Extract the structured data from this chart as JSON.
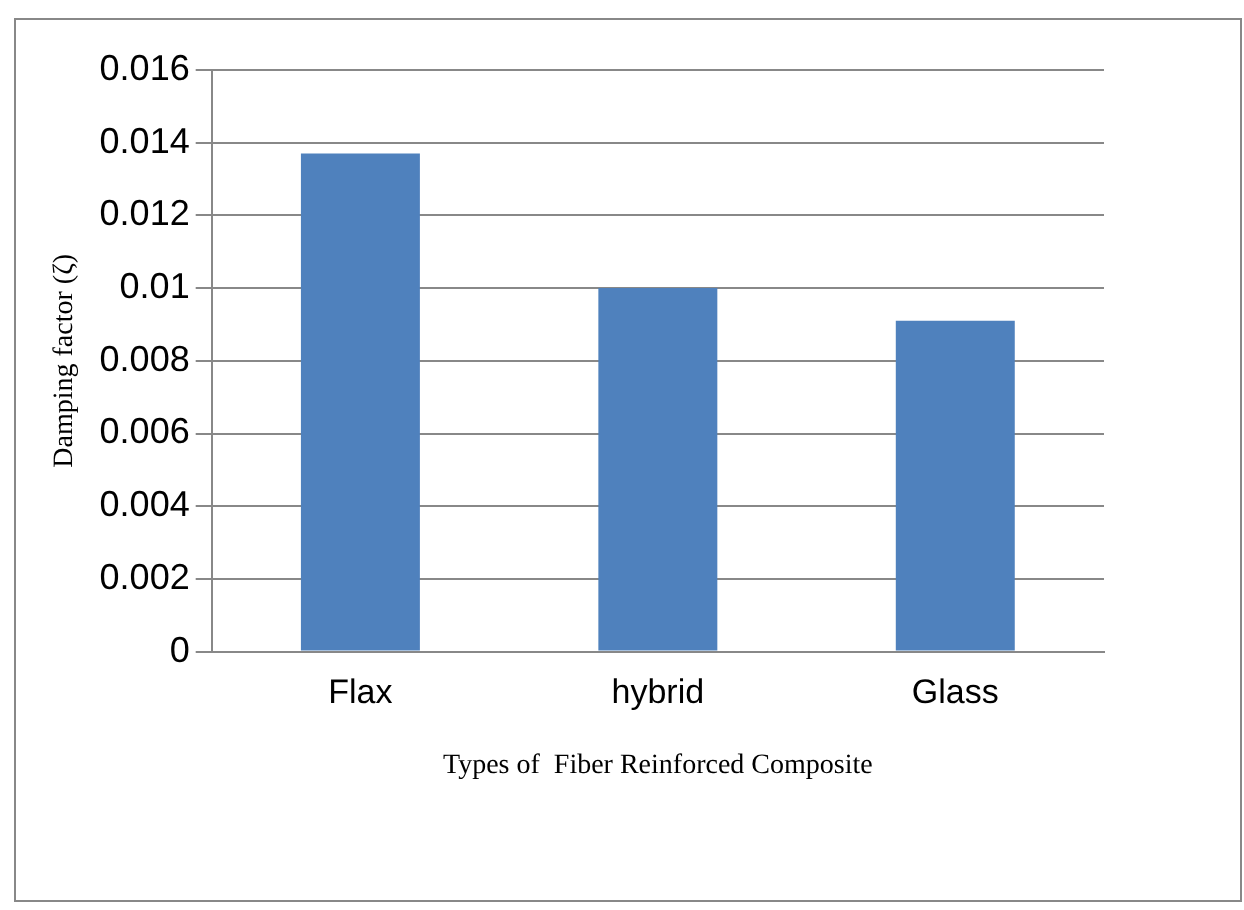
{
  "chart_data": {
    "type": "bar",
    "xlabel": "Types of  Fiber Reinforced Composite",
    "ylabel": "Damping factor (ζ)",
    "categories": [
      "Flax",
      "hybrid",
      "Glass"
    ],
    "values": [
      0.0137,
      0.01,
      0.0091
    ],
    "color": "#4f81bd",
    "ylim": [
      0,
      0.016
    ],
    "yticks": [
      0,
      0.002,
      0.004,
      0.006,
      0.008,
      0.01,
      0.012,
      0.014,
      0.016
    ],
    "grid": "y",
    "legend": false
  }
}
